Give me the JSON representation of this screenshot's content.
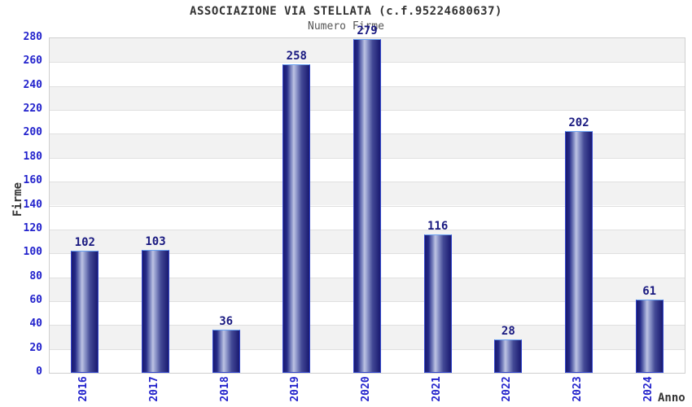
{
  "chart_data": {
    "type": "bar",
    "title": "ASSOCIAZIONE VIA STELLATA (c.f.95224680637)",
    "subtitle": "Numero Firme",
    "xlabel": "Anno",
    "ylabel": "Firme",
    "categories": [
      "2016",
      "2017",
      "2018",
      "2019",
      "2020",
      "2021",
      "2022",
      "2023",
      "2024"
    ],
    "values": [
      102,
      103,
      36,
      258,
      279,
      116,
      28,
      202,
      61
    ],
    "ylim": [
      0,
      280
    ],
    "ytick_step": 20,
    "grid": "horizontal-bands-alternating",
    "legend": "none",
    "value_labels": "above-bars",
    "x_tick_rotation": -90,
    "colors": {
      "background": "#ffffff",
      "band_gray": "#f2f2f2",
      "band_white": "#ffffff",
      "gridline": "#e0e0e0",
      "plot_border": "#cfcfcf",
      "tick_label": "#2222cc",
      "value_label": "#191980",
      "axis_title": "#333333",
      "subtitle_color": "#555555",
      "bar_dark": "#191970",
      "bar_highlight": "#bdc3e3",
      "bar_border": "#3347cc",
      "bar_border_top": "#6aa2f2"
    }
  }
}
